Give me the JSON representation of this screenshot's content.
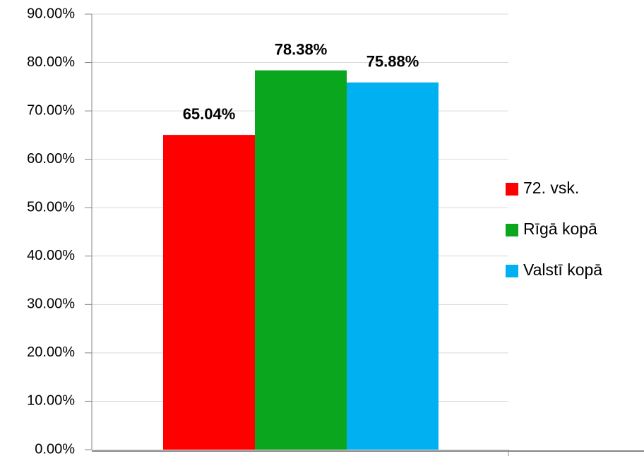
{
  "chart_data": {
    "type": "bar",
    "categories": [
      null
    ],
    "series": [
      {
        "name": "72. vsk.",
        "color": "#ff0000",
        "values": [
          65.04
        ],
        "value_labels": [
          "65.04%"
        ]
      },
      {
        "name": "Rīgā kopā",
        "color": "#0aa61e",
        "values": [
          78.38
        ],
        "value_labels": [
          "78.38%"
        ]
      },
      {
        "name": "Valstī kopā",
        "color": "#00b0f0",
        "values": [
          75.88
        ],
        "value_labels": [
          "75.88%"
        ]
      }
    ],
    "ylim": [
      0,
      90
    ],
    "yticks": [
      {
        "value": 0,
        "label": "0.00%"
      },
      {
        "value": 10,
        "label": "10.00%"
      },
      {
        "value": 20,
        "label": "20.00%"
      },
      {
        "value": 30,
        "label": "30.00%"
      },
      {
        "value": 40,
        "label": "40.00%"
      },
      {
        "value": 50,
        "label": "50.00%"
      },
      {
        "value": 60,
        "label": "60.00%"
      },
      {
        "value": 70,
        "label": "70.00%"
      },
      {
        "value": 80,
        "label": "80.00%"
      },
      {
        "value": 90,
        "label": "90.00%"
      }
    ],
    "grid": true,
    "legend": "right"
  }
}
